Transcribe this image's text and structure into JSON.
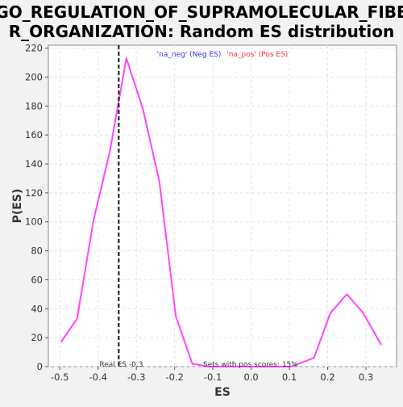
{
  "chart_data": {
    "type": "line",
    "title_lines": [
      "GO_REGULATION_OF_SUPRAMOLECULAR_FIBE",
      "R_ORGANIZATION: Random ES distribution"
    ],
    "xlabel": "ES",
    "ylabel": "P(ES)",
    "xlim": [
      -0.53,
      0.38
    ],
    "ylim": [
      0,
      222
    ],
    "x_ticks": [
      -0.5,
      -0.4,
      -0.3,
      -0.2,
      -0.1,
      0.0,
      0.1,
      0.2,
      0.3
    ],
    "x_tick_labels": [
      "-0.5",
      "-0.4",
      "-0.3",
      "-0.2",
      "-0.1",
      "0.0",
      "0.1",
      "0.2",
      "0.3"
    ],
    "y_ticks": [
      0,
      20,
      40,
      60,
      80,
      100,
      120,
      140,
      160,
      180,
      200,
      220
    ],
    "y_tick_labels": [
      "0",
      "20",
      "40",
      "60",
      "80",
      "100",
      "120",
      "140",
      "160",
      "180",
      "200",
      "220"
    ],
    "grid": true,
    "series": [
      {
        "color": "#ff44ff",
        "x": [
          -0.497,
          -0.455,
          -0.412,
          -0.369,
          -0.326,
          -0.283,
          -0.24,
          -0.197,
          -0.154,
          -0.111,
          -0.068,
          -0.025,
          0.018,
          0.061,
          0.104,
          0.164,
          0.207,
          0.25,
          0.293,
          0.34
        ],
        "y": [
          17,
          33,
          101,
          149,
          213,
          178,
          128,
          35,
          2,
          0,
          0,
          0,
          0,
          0,
          0,
          6,
          37,
          50,
          37,
          15
        ]
      }
    ],
    "real_es": {
      "x": -0.346,
      "label": "Real ES -0.3"
    },
    "legend": {
      "placement": "top",
      "entries": [
        {
          "text": "'na_neg' (Neg ES)",
          "color": "#3333ee"
        },
        {
          "text": "'na_pos' (Pos ES)",
          "color": "#ee3333"
        }
      ]
    },
    "annotation": "Sets with pos scores: 15%"
  }
}
